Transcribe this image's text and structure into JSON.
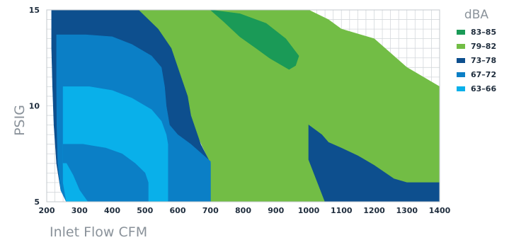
{
  "chart_data": {
    "type": "area",
    "xlabel": "Inlet Flow CFM",
    "ylabel": "PSIG",
    "xlim": [
      200,
      1400
    ],
    "ylim": [
      5,
      15
    ],
    "x_ticks": [
      "200",
      "300",
      "400",
      "500",
      "600",
      "700",
      "800",
      "900",
      "1000",
      "1100",
      "1200",
      "1300",
      "1400"
    ],
    "y_ticks": [
      "5",
      "10",
      "15"
    ],
    "grid": true,
    "legend_title": "dBA",
    "legend_position": "right",
    "legend": [
      {
        "label": "83–85",
        "color": "#1a9a57"
      },
      {
        "label": "79–82",
        "color": "#72bd45"
      },
      {
        "label": "73–78",
        "color": "#0d4f8e"
      },
      {
        "label": "67–72",
        "color": "#0b7fc6"
      },
      {
        "label": "63–66",
        "color": "#09b0ea"
      }
    ],
    "regions": [
      {
        "level": "79–82",
        "color": "#72bd45",
        "points": [
          [
            480,
            15
          ],
          [
            1000,
            15
          ],
          [
            1060,
            14.5
          ],
          [
            1100,
            14
          ],
          [
            1200,
            13.5
          ],
          [
            1300,
            12
          ],
          [
            1400,
            11
          ],
          [
            1400,
            6
          ],
          [
            1300,
            6
          ],
          [
            1260,
            6.2
          ],
          [
            1200,
            6.9
          ],
          [
            1150,
            7.4
          ],
          [
            1100,
            7.8
          ],
          [
            1060,
            8.1
          ],
          [
            1040,
            8.5
          ],
          [
            1000,
            9
          ],
          [
            1050,
            5
          ],
          [
            700,
            5
          ],
          [
            700,
            7
          ]
        ]
      },
      {
        "level": "83–85",
        "color": "#1a9a57",
        "points": [
          [
            700,
            15
          ],
          [
            790,
            14.8
          ],
          [
            870,
            14.3
          ],
          [
            930,
            13.5
          ],
          [
            970,
            12.6
          ],
          [
            960,
            12.1
          ],
          [
            940,
            11.9
          ],
          [
            920,
            12.1
          ],
          [
            880,
            12.5
          ],
          [
            840,
            13
          ],
          [
            790,
            13.6
          ],
          [
            740,
            14.4
          ]
        ]
      },
      {
        "level": "73–78",
        "color": "#0d4f8e",
        "points": [
          [
            1000,
            9
          ],
          [
            1000,
            7.2
          ],
          [
            1050,
            5
          ],
          [
            1400,
            5
          ],
          [
            1400,
            6
          ],
          [
            1300,
            6
          ],
          [
            1260,
            6.2
          ],
          [
            1200,
            6.9
          ],
          [
            1150,
            7.4
          ],
          [
            1100,
            7.8
          ],
          [
            1060,
            8.1
          ],
          [
            1040,
            8.5
          ]
        ]
      },
      {
        "level": "73–78",
        "color": "#0d4f8e",
        "points": [
          [
            215,
            15
          ],
          [
            480,
            15
          ],
          [
            540,
            14
          ],
          [
            580,
            13
          ],
          [
            610,
            11.5
          ],
          [
            630,
            10.5
          ],
          [
            640,
            9.5
          ],
          [
            670,
            8
          ],
          [
            700,
            7
          ],
          [
            700,
            5
          ],
          [
            260,
            5
          ],
          [
            243,
            5.6
          ],
          [
            230,
            7
          ],
          [
            222,
            9
          ],
          [
            218,
            11
          ],
          [
            215,
            13
          ]
        ]
      },
      {
        "level": "67–72",
        "color": "#0b7fc6",
        "points": [
          [
            230,
            13.7
          ],
          [
            320,
            13.7
          ],
          [
            400,
            13.6
          ],
          [
            460,
            13.2
          ],
          [
            520,
            12.6
          ],
          [
            550,
            12
          ],
          [
            560,
            11
          ],
          [
            565,
            10
          ],
          [
            575,
            9
          ],
          [
            600,
            8.5
          ],
          [
            640,
            8
          ],
          [
            700,
            7.1
          ],
          [
            700,
            5
          ],
          [
            260,
            5
          ],
          [
            243,
            5.6
          ],
          [
            234,
            7
          ],
          [
            231,
            9
          ],
          [
            230,
            11
          ]
        ]
      },
      {
        "level": "63–66",
        "color": "#09b0ea",
        "points": [
          [
            250,
            11
          ],
          [
            330,
            11
          ],
          [
            400,
            10.8
          ],
          [
            460,
            10.4
          ],
          [
            520,
            9.8
          ],
          [
            550,
            9.2
          ],
          [
            565,
            8.5
          ],
          [
            570,
            8
          ],
          [
            570,
            5
          ],
          [
            260,
            5
          ],
          [
            250,
            6
          ]
        ]
      },
      {
        "level": "67–72",
        "color": "#0b7fc6",
        "points": [
          [
            250,
            8
          ],
          [
            310,
            8
          ],
          [
            380,
            7.8
          ],
          [
            430,
            7.5
          ],
          [
            470,
            7
          ],
          [
            500,
            6.5
          ],
          [
            510,
            6
          ],
          [
            510,
            5
          ],
          [
            325,
            5
          ],
          [
            300,
            5.6
          ],
          [
            280,
            6.4
          ],
          [
            260,
            7
          ],
          [
            250,
            7
          ]
        ]
      },
      {
        "level": "63–66",
        "color": "#09b0ea",
        "points": [
          [
            250,
            7
          ],
          [
            260,
            7
          ],
          [
            280,
            6.4
          ],
          [
            300,
            5.6
          ],
          [
            325,
            5
          ],
          [
            260,
            5
          ],
          [
            252,
            6
          ]
        ]
      }
    ]
  }
}
